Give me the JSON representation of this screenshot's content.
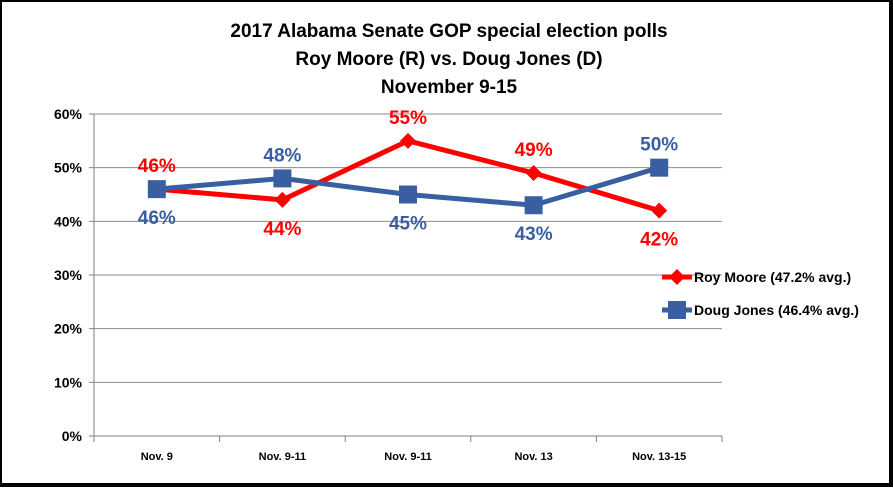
{
  "chart_data": {
    "type": "line",
    "title": [
      "2017 Alabama Senate GOP special election polls",
      "Roy Moore (R) vs. Doug Jones (D)",
      "November 9-15"
    ],
    "categories": [
      "Nov. 9",
      "Nov. 9-11",
      "Nov. 9-11",
      "Nov. 13",
      "Nov. 13-15"
    ],
    "ylim": [
      0,
      60
    ],
    "yticks": [
      0,
      10,
      20,
      30,
      40,
      50,
      60
    ],
    "ytick_labels": [
      "0%",
      "10%",
      "20%",
      "30%",
      "40%",
      "50%",
      "60%"
    ],
    "grid": true,
    "legend_position": "right",
    "series": [
      {
        "name": "Roy Moore (47.2% avg.)",
        "color": "#FF0000",
        "marker": "diamond",
        "values": [
          46,
          44,
          55,
          49,
          42
        ],
        "labels": [
          "46%",
          "44%",
          "55%",
          "49%",
          "42%"
        ],
        "label_side": [
          "above",
          "below",
          "above",
          "above",
          "below"
        ]
      },
      {
        "name": "Doug Jones (46.4% avg.)",
        "color": "#3A5FA0",
        "marker": "square",
        "values": [
          46,
          48,
          45,
          43,
          50
        ],
        "labels": [
          "46%",
          "48%",
          "45%",
          "43%",
          "50%"
        ],
        "label_side": [
          "below",
          "above",
          "below",
          "below",
          "above"
        ]
      }
    ]
  }
}
